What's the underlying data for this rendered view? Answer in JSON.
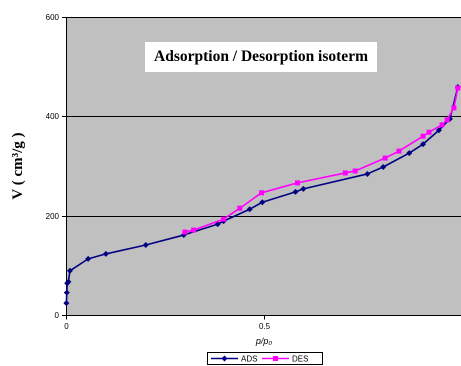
{
  "chart_data": {
    "type": "line",
    "title": "Adsorption / Desorption isoterm",
    "xlabel": "p/p₀",
    "ylabel": "V ( cm³/g )",
    "xlim": [
      0,
      1
    ],
    "ylim": [
      0,
      600
    ],
    "xticks": [
      0,
      0.5
    ],
    "yticks": [
      0,
      200,
      400,
      600
    ],
    "grid": {
      "y": true,
      "x": false
    },
    "legend": "bottom",
    "plot_background": "#c0c0c0",
    "series": [
      {
        "name": "ADS",
        "marker": "diamond",
        "color": "#000080",
        "x": [
          0.001,
          0.002,
          0.003,
          0.006,
          0.01,
          0.056,
          0.101,
          0.202,
          0.298,
          0.384,
          0.399,
          0.465,
          0.497,
          0.581,
          0.601,
          0.763,
          0.803,
          0.869,
          0.904,
          0.944,
          0.972,
          0.992
        ],
        "y": [
          24,
          45,
          64,
          67,
          89,
          113,
          123,
          141,
          161,
          183,
          189,
          213,
          227,
          248,
          254,
          284,
          298,
          326,
          344,
          372,
          395,
          459
        ]
      },
      {
        "name": "DES",
        "marker": "square",
        "color": "#ff00ff",
        "x": [
          0.301,
          0.323,
          0.399,
          0.44,
          0.495,
          0.586,
          0.707,
          0.732,
          0.808,
          0.843,
          0.904,
          0.919,
          0.952,
          0.965,
          0.982,
          0.992
        ],
        "y": [
          167,
          171,
          193,
          215,
          246,
          266,
          286,
          290,
          316,
          330,
          360,
          368,
          383,
          393,
          417,
          457
        ]
      }
    ]
  }
}
